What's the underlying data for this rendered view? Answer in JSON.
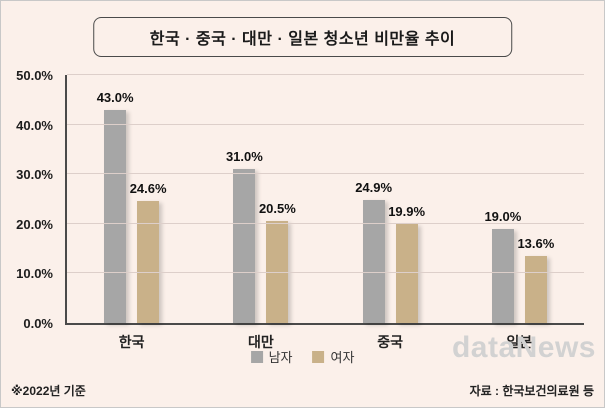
{
  "title": "한국 · 중국 · 대만 · 일본 청소년 비만율 추이",
  "footnote_left": "※2022년 기준",
  "footnote_right": "자료 : 한국보건의료원 등",
  "watermark": "dataNews",
  "colors": {
    "background": "#fbf0ea",
    "male": "#a6a6a6",
    "female": "#c9b189"
  },
  "chart_data": {
    "type": "bar",
    "title": "한국 · 중국 · 대만 · 일본 청소년 비만율 추이",
    "categories": [
      "한국",
      "대만",
      "중국",
      "일본"
    ],
    "series": [
      {
        "name": "남자",
        "key": "male",
        "color": "#a6a6a6",
        "values": [
          43.0,
          31.0,
          24.9,
          19.0
        ]
      },
      {
        "name": "여자",
        "key": "female",
        "color": "#c9b189",
        "values": [
          24.6,
          20.5,
          19.9,
          13.6
        ]
      }
    ],
    "xlabel": "",
    "ylabel": "",
    "ylim": [
      0,
      50
    ],
    "ytick_step": 10,
    "ytick_labels": [
      "0.0%",
      "10.0%",
      "20.0%",
      "30.0%",
      "40.0%",
      "50.0%"
    ],
    "value_label_format": "{value}%",
    "grid": true,
    "legend_position": "bottom"
  }
}
